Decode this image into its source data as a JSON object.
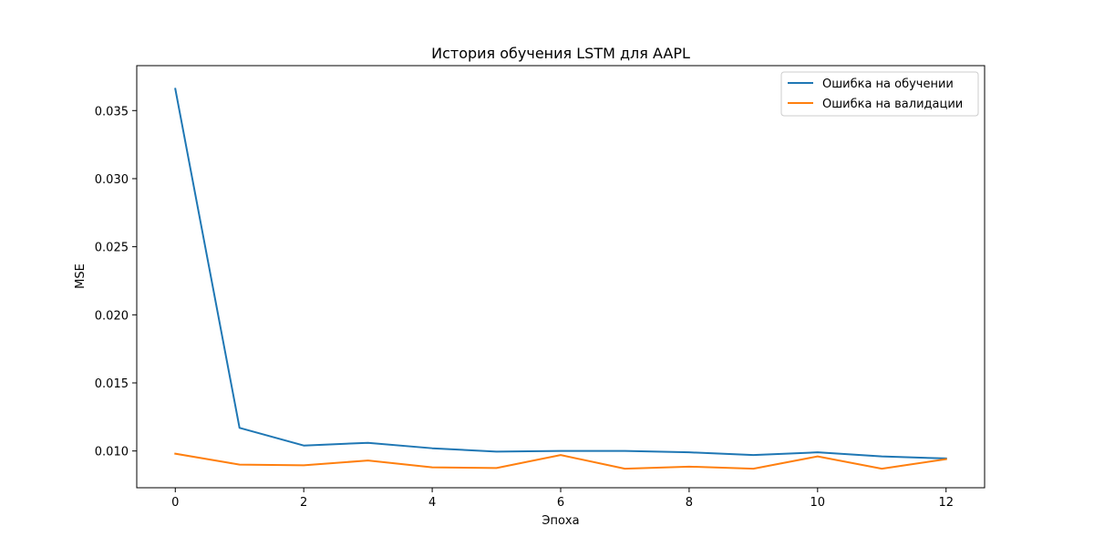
{
  "chart_data": {
    "type": "line",
    "title": "История обучения LSTM для AAPL",
    "xlabel": "Эпоха",
    "ylabel": "MSE",
    "x": [
      0,
      1,
      2,
      3,
      4,
      5,
      6,
      7,
      8,
      9,
      10,
      11,
      12
    ],
    "xlim": [
      -0.6,
      12.6
    ],
    "ylim": [
      0.0073,
      0.0383
    ],
    "xticks": [
      0,
      2,
      4,
      6,
      8,
      10,
      12
    ],
    "xtick_labels": [
      "0",
      "2",
      "4",
      "6",
      "8",
      "10",
      "12"
    ],
    "yticks": [
      0.01,
      0.015,
      0.02,
      0.025,
      0.03,
      0.035
    ],
    "ytick_labels": [
      "0.010",
      "0.015",
      "0.020",
      "0.025",
      "0.030",
      "0.035"
    ],
    "grid": false,
    "legend_position": "top-right",
    "series": [
      {
        "name": "Ошибка на обучении",
        "color": "#1f77b4",
        "values": [
          0.0366,
          0.0117,
          0.0104,
          0.0106,
          0.0102,
          0.00995,
          0.01,
          0.01,
          0.0099,
          0.0097,
          0.0099,
          0.0096,
          0.00945
        ]
      },
      {
        "name": "Ошибка на валидации",
        "color": "#ff7f0e",
        "values": [
          0.0098,
          0.009,
          0.00895,
          0.0093,
          0.0088,
          0.00875,
          0.0097,
          0.0087,
          0.00885,
          0.0087,
          0.0096,
          0.0087,
          0.0094
        ]
      }
    ]
  }
}
